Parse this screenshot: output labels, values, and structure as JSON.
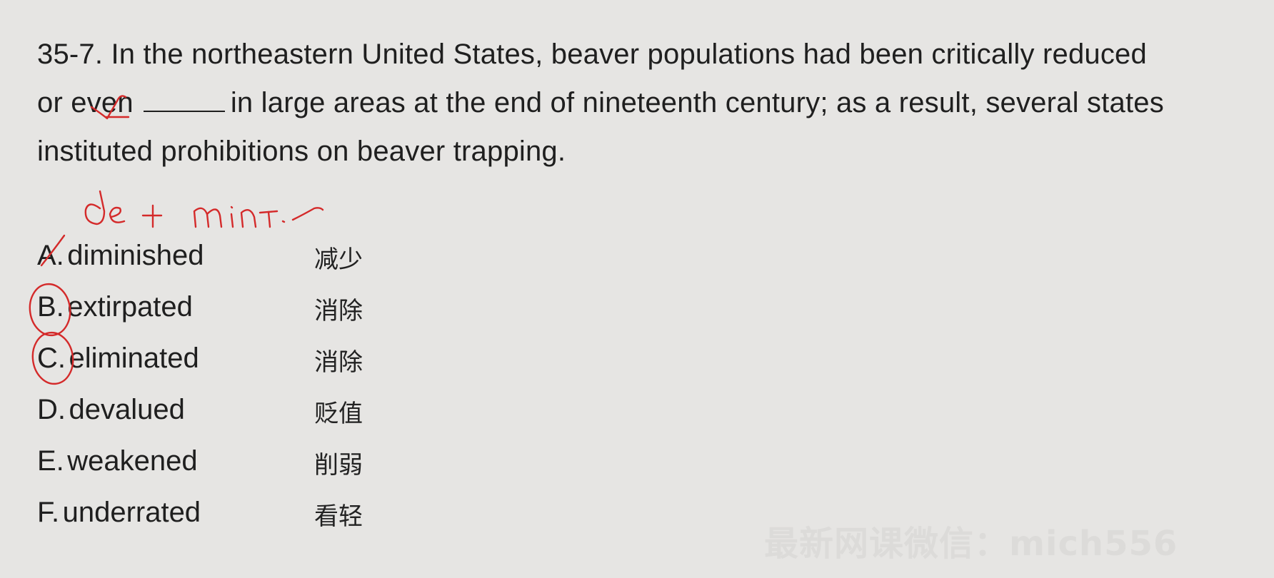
{
  "question": {
    "part1": "35-7. In the northeastern United States, beaver populations had been critically reduced",
    "part2a": "or even",
    "part2b": "in large areas at the end of nineteenth century; as a result, several states",
    "part3": "instituted prohibitions on beaver trapping."
  },
  "options": [
    {
      "letter": "A.",
      "word": "diminished",
      "cn": "减少"
    },
    {
      "letter": "B.",
      "word": "extirpated",
      "cn": "消除"
    },
    {
      "letter": "C.",
      "word": "eliminated",
      "cn": "消除"
    },
    {
      "letter": "D.",
      "word": "devalued",
      "cn": "贬值"
    },
    {
      "letter": "E.",
      "word": "weakened",
      "cn": "削弱"
    },
    {
      "letter": "F.",
      "word": "underrated",
      "cn": "看轻"
    }
  ],
  "annotation": {
    "ink_color": "#d42a2a",
    "handwriting": "de + minT..."
  },
  "watermark": "最新网课微信：mich556",
  "colors": {
    "background": "#e6e5e3",
    "text": "#1f1f1f"
  }
}
